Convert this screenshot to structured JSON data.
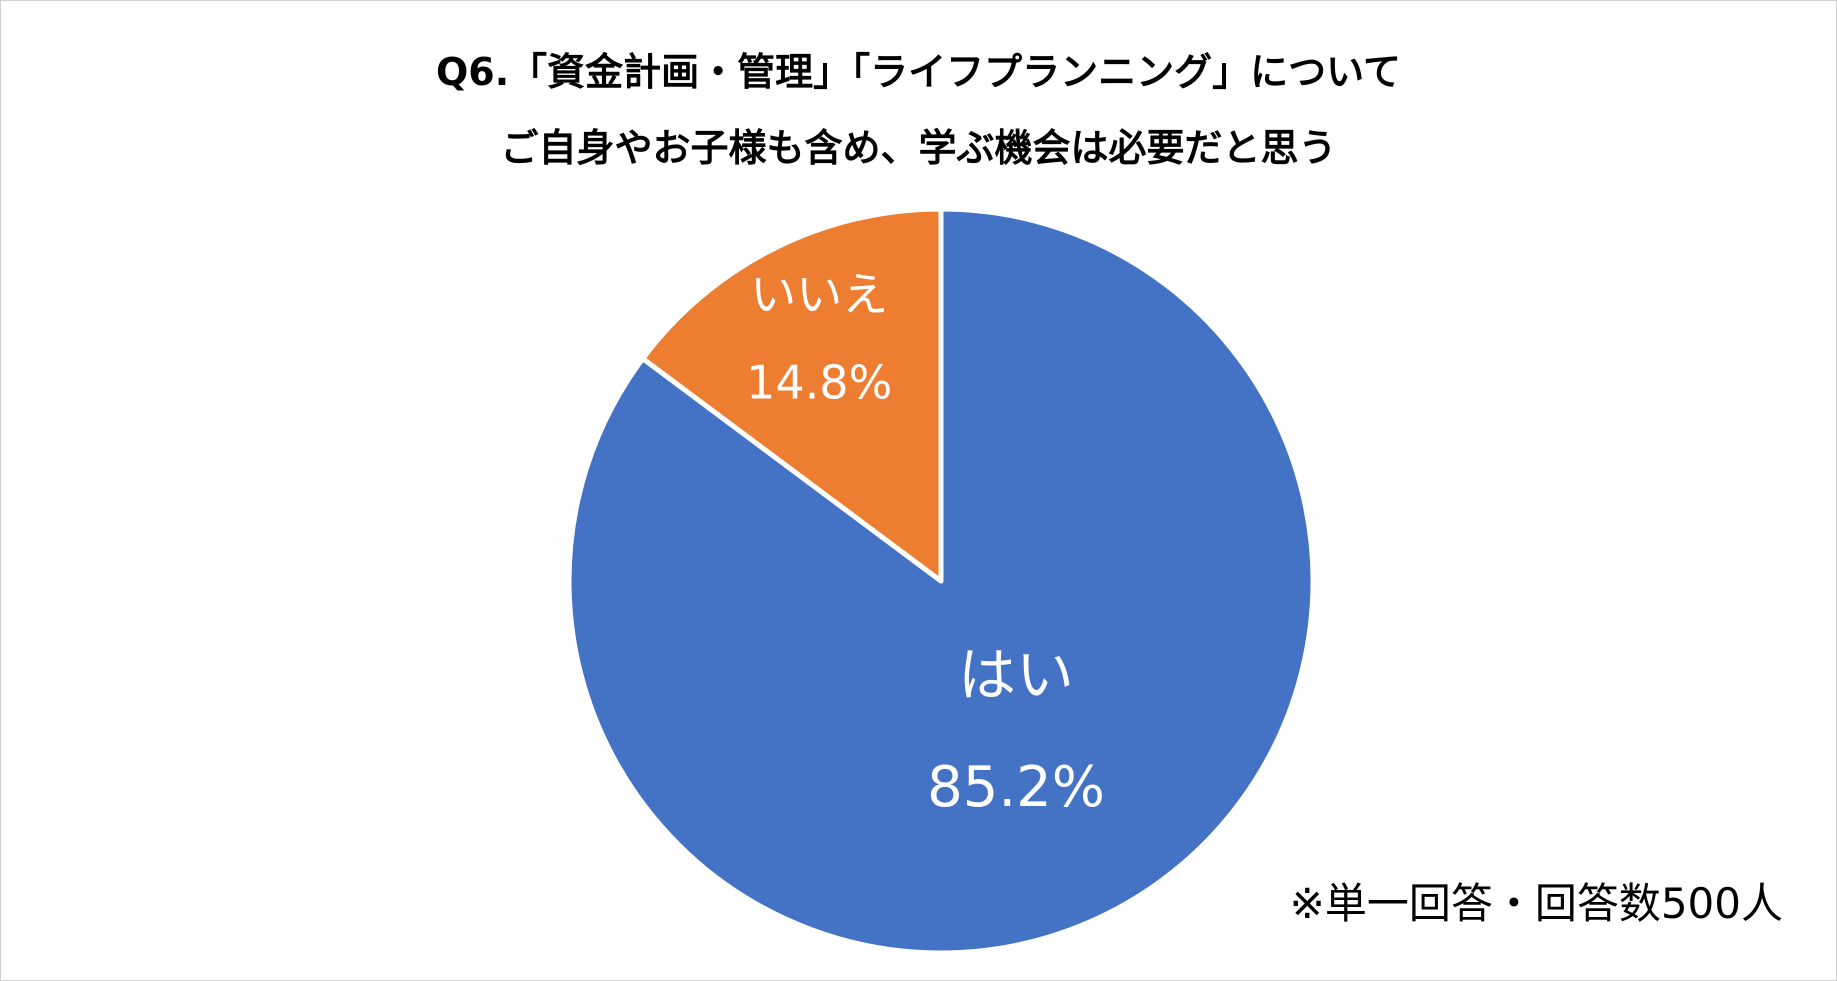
{
  "chart_data": {
    "type": "pie",
    "title": [
      "Q6.「資金計画・管理」「ライフプランニング」について",
      "ご自身やお子様も含め、学ぶ機会は必要だと思う"
    ],
    "slices": [
      {
        "label": "はい",
        "value": 85.2,
        "value_label": "85.2%",
        "color": "#4472C4"
      },
      {
        "label": "いいえ",
        "value": 14.8,
        "value_label": "14.8%",
        "color": "#ED7D31"
      }
    ],
    "start_angle_deg": 0,
    "direction": "clockwise",
    "labels_inside": true,
    "legend": "none"
  },
  "note": "※単一回答・回答数500人"
}
